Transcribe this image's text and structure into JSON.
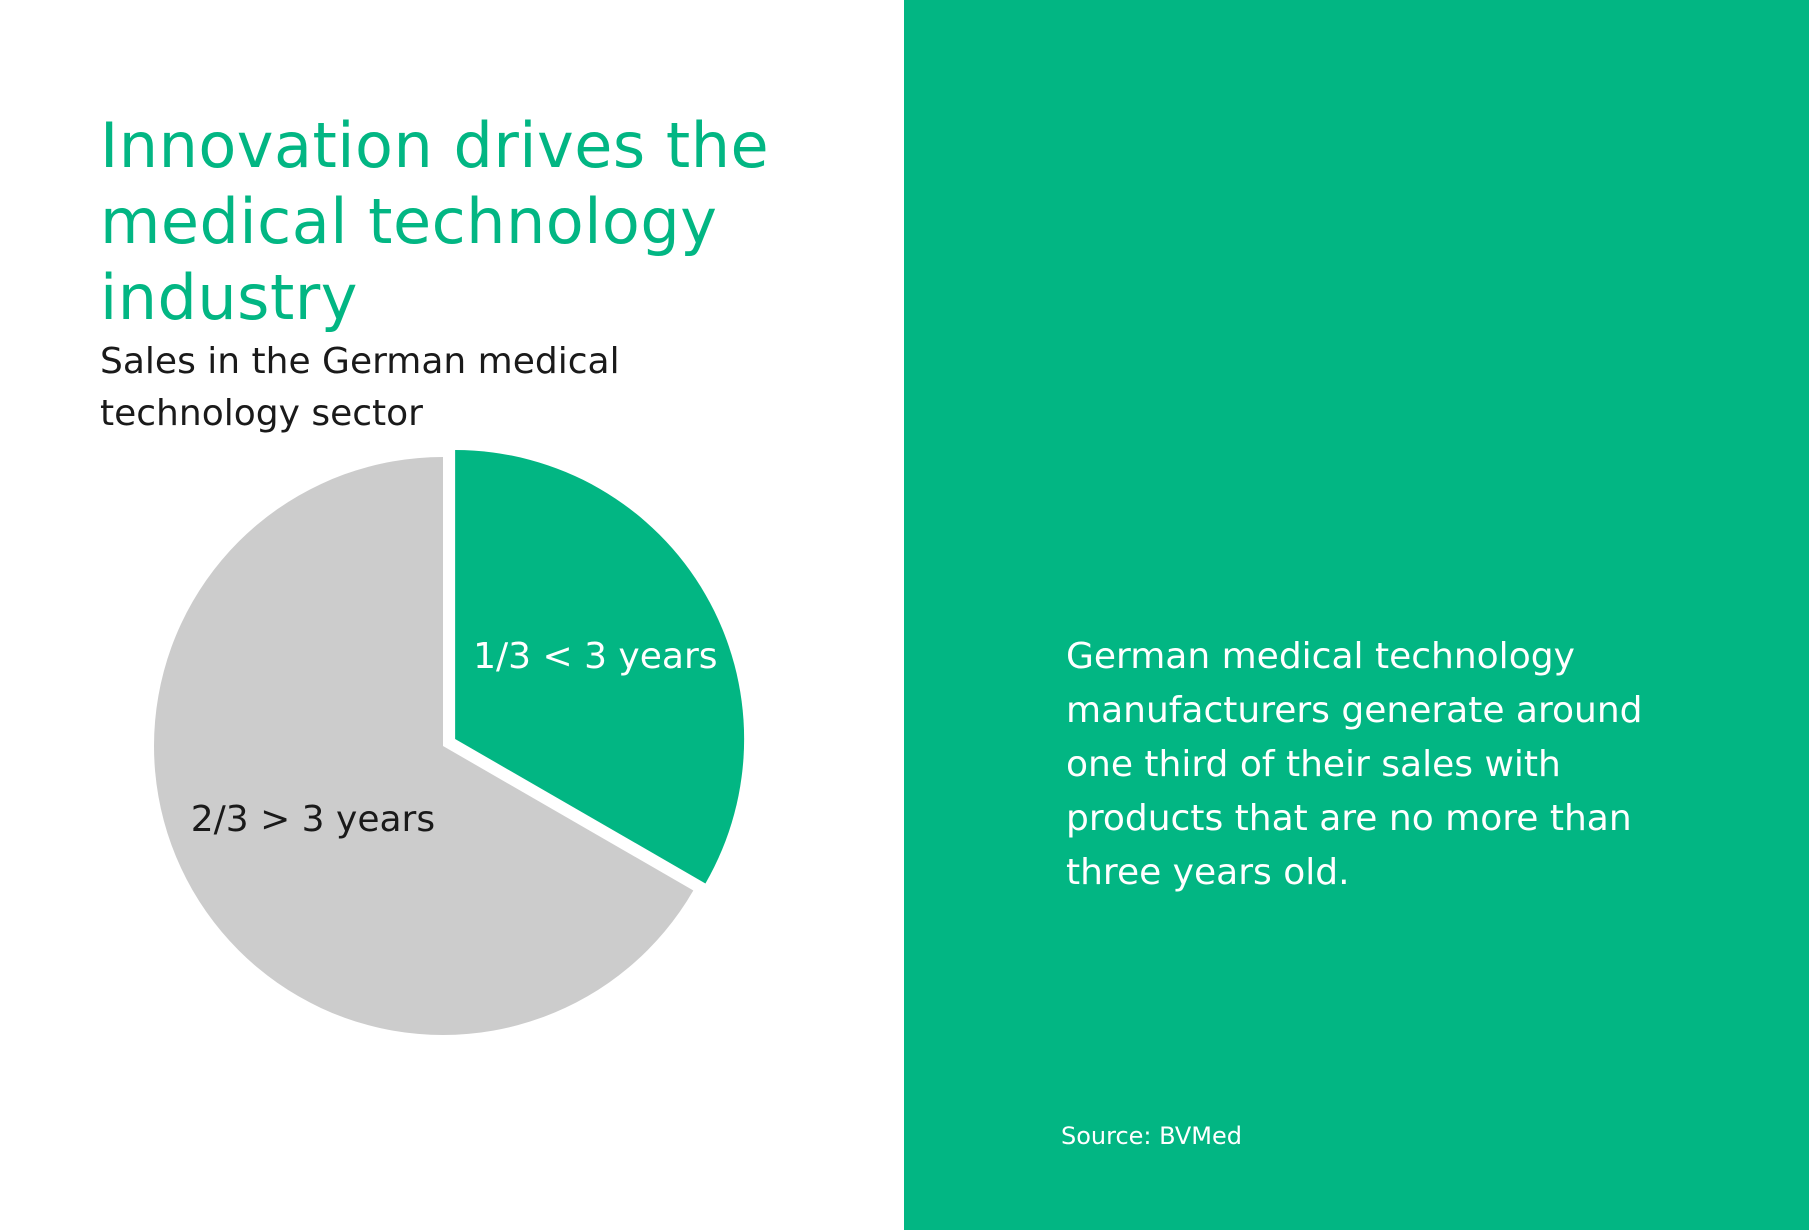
{
  "title": "Innovation drives the medical technology industry",
  "subtitle": "Sales in the German medical technology sector",
  "statement": "German medical technology manufacturers generate around one third of their sales with products that are no more than three years old.",
  "source": "Source: BVMed",
  "colors": {
    "accent": "#02b683",
    "slice_grey": "#cccccc",
    "text_dark": "#1a1a1a",
    "text_light": "#ffffff"
  },
  "chart_data": {
    "type": "pie",
    "title": "Sales in the German medical technology sector",
    "legend": "none",
    "slices": [
      {
        "label": "1/3 < 3 years",
        "value": 0.3333,
        "color": "#02b683",
        "label_color": "#ffffff",
        "exploded": true
      },
      {
        "label": "2/3 > 3 years",
        "value": 0.6667,
        "color": "#cccccc",
        "label_color": "#1a1a1a",
        "exploded": false
      }
    ]
  }
}
